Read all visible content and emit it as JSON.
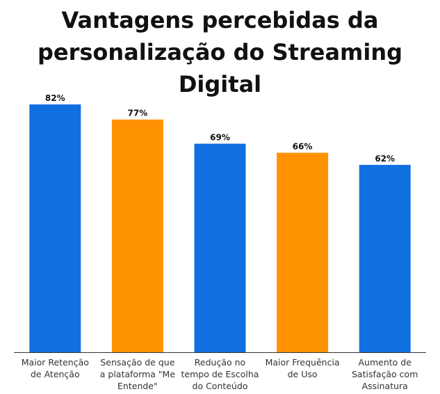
{
  "title_lines": [
    "Vantagens percebidas da",
    "personalização do Streaming Digital"
  ],
  "colors": {
    "blue": "#1170e0",
    "orange": "#ff9200",
    "axis": "#333333"
  },
  "chart_data": {
    "type": "bar",
    "title": "Vantagens percebidas da personalização do Streaming Digital",
    "xlabel": "",
    "ylabel": "",
    "ylim": [
      0,
      100
    ],
    "grid": false,
    "legend": "none",
    "categories": [
      [
        "Maior Retenção",
        "de Atenção"
      ],
      [
        "Sensação de que",
        "a plataforma \"Me",
        "Entende\""
      ],
      [
        "Redução no",
        "tempo de Escolha",
        "do Conteúdo"
      ],
      [
        "Maior Frequência",
        "de Uso"
      ],
      [
        "Aumento de",
        "Satisfação com",
        "Assinatura"
      ]
    ],
    "values": [
      82,
      77,
      69,
      66,
      62
    ],
    "value_labels": [
      "82%",
      "77%",
      "69%",
      "66%",
      "62%"
    ],
    "bar_colors": [
      "#1170e0",
      "#ff9200",
      "#1170e0",
      "#ff9200",
      "#1170e0"
    ]
  }
}
